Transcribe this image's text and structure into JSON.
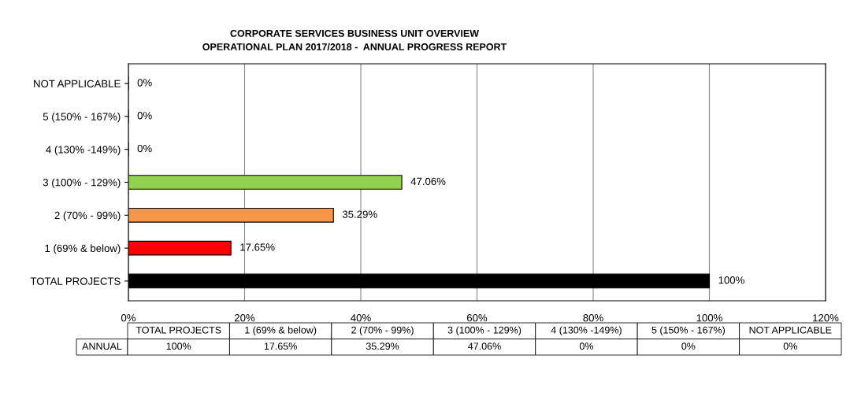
{
  "chart_data": {
    "type": "bar",
    "orientation": "horizontal",
    "title": "CORPORATE SERVICES BUSINESS UNIT OVERVIEW\nOPERATIONAL PLAN 2017/2018 -  ANNUAL PROGRESS REPORT",
    "categories": [
      "NOT APPLICABLE",
      "5 (150% - 167%)",
      "4 (130% -149%)",
      "3 (100% - 129%)",
      "2 (70% - 99%)",
      "1 (69% & below)",
      "TOTAL PROJECTS"
    ],
    "values": [
      0,
      0,
      0,
      47.06,
      35.29,
      17.65,
      100
    ],
    "colors": [
      null,
      null,
      null,
      "#92d050",
      "#f79646",
      "#ff0000",
      "#000000"
    ],
    "value_labels": [
      "0%",
      "0%",
      "0%",
      "47.06%",
      "35.29%",
      "17.65%",
      "100%"
    ],
    "xlim": [
      0,
      120
    ],
    "xticks": [
      {
        "value": 0,
        "label": "0%"
      },
      {
        "value": 20,
        "label": "20%"
      },
      {
        "value": 40,
        "label": "40%"
      },
      {
        "value": 60,
        "label": "60%"
      },
      {
        "value": 80,
        "label": "80%"
      },
      {
        "value": 100,
        "label": "100%"
      },
      {
        "value": 120,
        "label": "120%"
      }
    ],
    "grid": "x",
    "legend": false,
    "annotations": [
      "ANNUAL"
    ]
  }
}
